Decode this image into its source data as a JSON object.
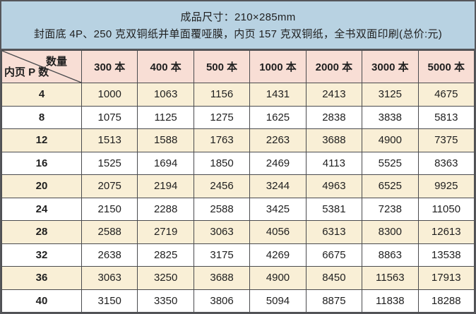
{
  "banner": {
    "line1": "成品尺寸：210×285mm",
    "line2": "封面底 4P、250 克双铜纸并单面覆哑膜，内页 157 克双铜纸，全书双面印刷(总价:元)"
  },
  "table": {
    "corner": {
      "top_right": "数量",
      "bottom_left": "内页 P 数"
    },
    "columns": [
      "300 本",
      "400 本",
      "500 本",
      "1000 本",
      "2000 本",
      "3000 本",
      "5000 本"
    ],
    "rows": [
      {
        "pages": "4",
        "values": [
          "1000",
          "1063",
          "1156",
          "1431",
          "2413",
          "3125",
          "4675"
        ]
      },
      {
        "pages": "8",
        "values": [
          "1075",
          "1125",
          "1275",
          "1625",
          "2838",
          "3838",
          "5813"
        ]
      },
      {
        "pages": "12",
        "values": [
          "1513",
          "1588",
          "1763",
          "2263",
          "3688",
          "4900",
          "7375"
        ]
      },
      {
        "pages": "16",
        "values": [
          "1525",
          "1694",
          "1850",
          "2469",
          "4113",
          "5525",
          "8363"
        ]
      },
      {
        "pages": "20",
        "values": [
          "2075",
          "2194",
          "2456",
          "3244",
          "4963",
          "6525",
          "9925"
        ]
      },
      {
        "pages": "24",
        "values": [
          "2150",
          "2288",
          "2588",
          "3425",
          "5381",
          "7238",
          "11050"
        ]
      },
      {
        "pages": "28",
        "values": [
          "2588",
          "2719",
          "3063",
          "4056",
          "6313",
          "8300",
          "12613"
        ]
      },
      {
        "pages": "32",
        "values": [
          "2638",
          "2825",
          "3175",
          "4269",
          "6675",
          "8863",
          "13538"
        ]
      },
      {
        "pages": "36",
        "values": [
          "3063",
          "3250",
          "3688",
          "4900",
          "8450",
          "11563",
          "17913"
        ]
      },
      {
        "pages": "40",
        "values": [
          "3150",
          "3350",
          "3806",
          "5094",
          "8875",
          "11838",
          "18288"
        ]
      }
    ]
  },
  "colors": {
    "banner_bg": "#b8d2e2",
    "header_bg": "#f8ded5",
    "row_alt_bg": "#f9efd6",
    "row_bg": "#ffffff",
    "border": "#4a4b4e",
    "text": "#1f1f1f"
  }
}
